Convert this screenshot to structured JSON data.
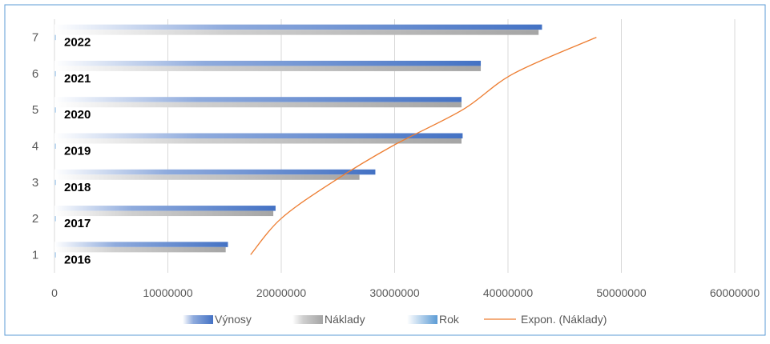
{
  "chart_data": {
    "type": "bar",
    "orientation": "horizontal",
    "categories": [
      "1",
      "2",
      "3",
      "4",
      "5",
      "6",
      "7"
    ],
    "year_labels": [
      "2016",
      "2017",
      "2018",
      "2019",
      "2020",
      "2021",
      "2022"
    ],
    "series": [
      {
        "name": "Výnosy",
        "values": [
          15300000,
          19500000,
          28300000,
          36000000,
          35900000,
          37600000,
          43000000
        ],
        "color": "#4472C4"
      },
      {
        "name": "Náklady",
        "values": [
          15100000,
          19300000,
          26900000,
          35900000,
          35900000,
          37600000,
          42700000
        ],
        "color": "#A5A5A5"
      },
      {
        "name": "Rok",
        "values": [
          2016,
          2017,
          2018,
          2019,
          2020,
          2021,
          2022
        ],
        "color": "#5B9BD5"
      }
    ],
    "trendline": {
      "name": "Expon. (Náklady)",
      "type": "exponential",
      "color": "#ED7D31",
      "points": [
        [
          17300000,
          1
        ],
        [
          20000000,
          2
        ],
        [
          24500000,
          3
        ],
        [
          29800000,
          4
        ],
        [
          36000000,
          5
        ],
        [
          40500000,
          6
        ],
        [
          47800000,
          7
        ]
      ]
    },
    "xticks": [
      0,
      10000000,
      20000000,
      30000000,
      40000000,
      50000000,
      60000000
    ],
    "xtick_labels": [
      "0",
      "10000000",
      "20000000",
      "30000000",
      "40000000",
      "50000000",
      "60000000"
    ],
    "xlim": [
      0,
      60000000
    ],
    "ylim": [
      0.5,
      7.5
    ],
    "grid": true,
    "legend_position": "bottom",
    "title": "",
    "xlabel": "",
    "ylabel": ""
  }
}
